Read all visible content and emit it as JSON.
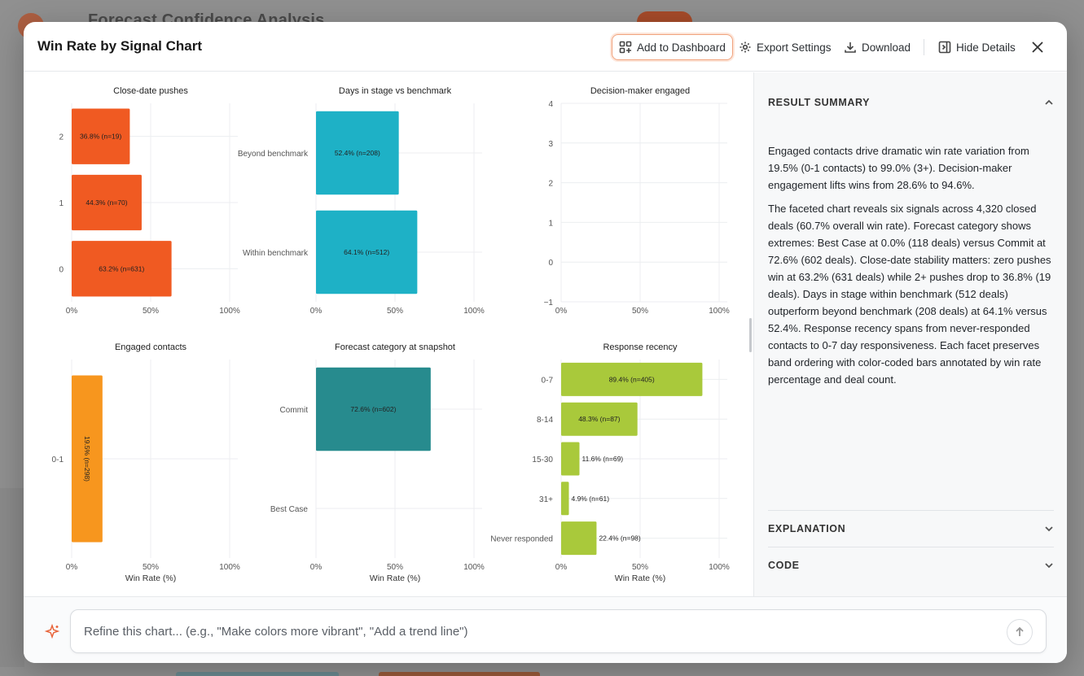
{
  "background": {
    "page_title": "Forecast Confidence Analysis"
  },
  "modal": {
    "title": "Win Rate by Signal Chart",
    "buttons": {
      "add_to_dashboard": "Add to Dashboard",
      "export_settings": "Export Settings",
      "download": "Download",
      "hide_details": "Hide Details"
    }
  },
  "side_panel": {
    "result_summary_label": "RESULT SUMMARY",
    "summary_paragraphs": [
      "Engaged contacts drive dramatic win rate variation from 19.5% (0-1 contacts) to 99.0% (3+). Decision-maker engagement lifts wins from 28.6% to 94.6%.",
      "The faceted chart reveals six signals across 4,320 closed deals (60.7% overall win rate). Forecast category shows extremes: Best Case at 0.0% (118 deals) versus Commit at 72.6% (602 deals). Close-date stability matters: zero pushes win at 63.2% (631 deals) while 2+ pushes drop to 36.8% (19 deals). Days in stage within benchmark (512 deals) outperform beyond benchmark (208 deals) at 64.1% versus 52.4%. Response recency spans from never-responded contacts to 0-7 day responsiveness. Each facet preserves band ordering with color-coded bars annotated by win rate percentage and deal count."
    ],
    "explanation_label": "EXPLANATION",
    "code_label": "CODE"
  },
  "footer": {
    "refine_placeholder": "Refine this chart... (e.g., \"Make colors more vibrant\", \"Add a trend line\")"
  },
  "icons": {
    "add_to_dashboard": "dashboard-add-icon",
    "export_settings": "gear-icon",
    "download": "download-icon",
    "hide_details": "panel-collapse-icon",
    "close": "close-icon",
    "sparkle": "sparkle-icon",
    "send": "arrow-up-icon"
  },
  "chart_data": [
    {
      "type": "bar",
      "orientation": "horizontal",
      "title": "Close-date pushes",
      "categories": [
        "2",
        "1",
        "0"
      ],
      "values": [
        36.8,
        44.3,
        63.2
      ],
      "labels": [
        "36.8% (n=19)",
        "44.3% (n=70)",
        "63.2% (n=631)"
      ],
      "color": "#f05a22",
      "xticks": [
        "0%",
        "50%",
        "100%"
      ],
      "xlabel": ""
    },
    {
      "type": "bar",
      "orientation": "horizontal",
      "title": "Days in stage vs benchmark",
      "categories": [
        "Beyond benchmark",
        "Within benchmark"
      ],
      "values": [
        52.4,
        64.1
      ],
      "labels": [
        "52.4% (n=208)",
        "64.1% (n=512)"
      ],
      "color": "#1eb1c6",
      "xticks": [
        "0%",
        "50%",
        "100%"
      ],
      "xlabel": ""
    },
    {
      "type": "bar",
      "orientation": "horizontal",
      "title": "Decision-maker engaged",
      "categories": [],
      "values": [],
      "labels": [],
      "color": "#888888",
      "yticks": [
        "4",
        "3",
        "2",
        "1",
        "0",
        "−1"
      ],
      "xticks": [
        "0%",
        "50%",
        "100%"
      ],
      "xlabel": ""
    },
    {
      "type": "bar",
      "orientation": "horizontal",
      "title": "Engaged contacts",
      "categories": [
        "0-1"
      ],
      "values": [
        19.5
      ],
      "labels": [
        "19.5% (n=298)"
      ],
      "color": "#f7961e",
      "xticks": [
        "0%",
        "50%",
        "100%"
      ],
      "xlabel": "Win Rate (%)"
    },
    {
      "type": "bar",
      "orientation": "horizontal",
      "title": "Forecast category at snapshot",
      "categories": [
        "Commit",
        "Best Case"
      ],
      "values": [
        72.6,
        0.0
      ],
      "labels": [
        "72.6% (n=602)",
        ""
      ],
      "color": "#278b8e",
      "xticks": [
        "0%",
        "50%",
        "100%"
      ],
      "xlabel": "Win Rate (%)"
    },
    {
      "type": "bar",
      "orientation": "horizontal",
      "title": "Response recency",
      "categories": [
        "0-7",
        "8-14",
        "15-30",
        "31+",
        "Never responded"
      ],
      "values": [
        89.4,
        48.3,
        11.6,
        4.9,
        22.4
      ],
      "labels": [
        "89.4% (n=405)",
        "48.3% (n=87)",
        "11.6% (n=69)",
        "4.9% (n=61)",
        "22.4% (n=98)"
      ],
      "color": "#a9c93b",
      "xticks": [
        "0%",
        "50%",
        "100%"
      ],
      "xlabel": "Win Rate (%)"
    }
  ]
}
